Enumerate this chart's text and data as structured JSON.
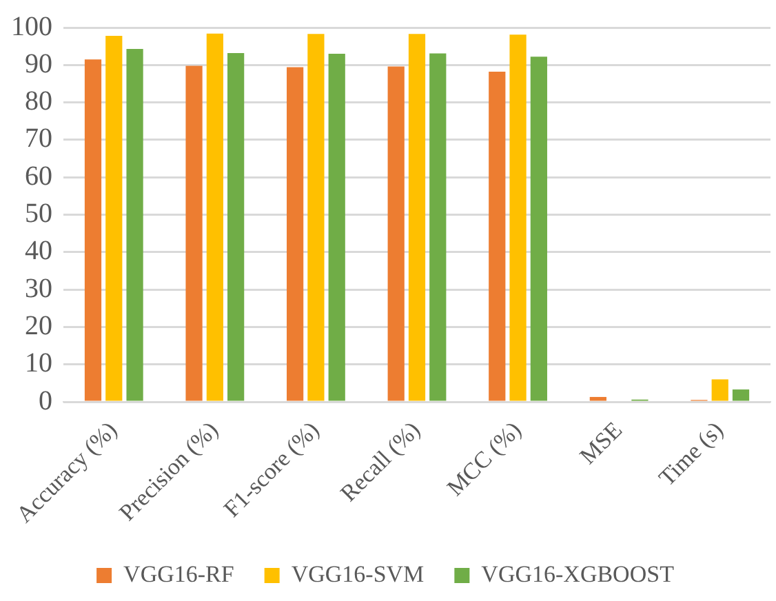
{
  "chart_data": {
    "type": "bar",
    "categories": [
      "Accuracy (%)",
      "Precision (%)",
      "F1-score (%)",
      "Recall (%)",
      "MCC (%)",
      "MSE",
      "Time (s)"
    ],
    "series": [
      {
        "name": "VGG16-RF",
        "color": "#ed7d31",
        "values": [
          91.5,
          89.8,
          89.4,
          89.6,
          88.2,
          1.3,
          0.5
        ]
      },
      {
        "name": "VGG16-SVM",
        "color": "#ffc000",
        "values": [
          97.8,
          98.4,
          98.3,
          98.3,
          98.1,
          0,
          6.0
        ]
      },
      {
        "name": "VGG16-XGBOOST",
        "color": "#70ad47",
        "values": [
          94.3,
          93.2,
          93.0,
          93.1,
          92.2,
          0.6,
          3.3
        ]
      }
    ],
    "ylim": [
      0,
      100
    ],
    "yticks": [
      0,
      10,
      20,
      30,
      40,
      50,
      60,
      70,
      80,
      90,
      100
    ],
    "grid": "y",
    "legend": "bottom"
  }
}
